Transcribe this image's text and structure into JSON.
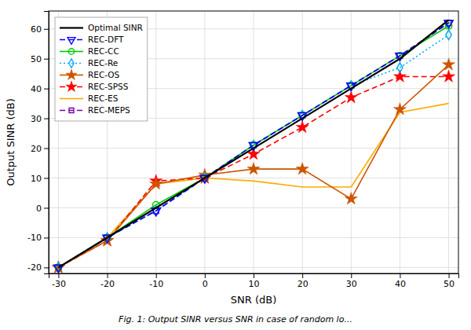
{
  "chart_data": {
    "type": "line",
    "x_label": "SNR (dB)",
    "y_label": "Output SINR (dB)",
    "caption": "Fig. 1: Output SINR versus SNR in case of random lo...",
    "x": [
      -30,
      -20,
      -10,
      0,
      10,
      20,
      30,
      40,
      50
    ],
    "series": [
      {
        "name": "Optimal SINR",
        "color": "#000000",
        "line_style": "solid",
        "marker": "none",
        "values": [
          -20,
          -10,
          0,
          10,
          20,
          30,
          40,
          50,
          63
        ]
      },
      {
        "name": "REC-DFT",
        "color": "#0000FF",
        "line_style": "dashed",
        "marker": "triangle-down",
        "values": [
          -20,
          -10,
          -1,
          10,
          21,
          31,
          41,
          51,
          62
        ]
      },
      {
        "name": "REC-CC",
        "color": "#00CC00",
        "line_style": "solid",
        "marker": "circle",
        "values": [
          -20,
          -10,
          1,
          10,
          21,
          31,
          41,
          51,
          61
        ]
      },
      {
        "name": "REC-Re",
        "color": "#00AAFF",
        "line_style": "dotted",
        "marker": "diamond",
        "values": [
          -20,
          -10,
          -1,
          10,
          21,
          31,
          41,
          47,
          58
        ]
      },
      {
        "name": "REC-OS",
        "color": "#CC5500",
        "line_style": "solid",
        "marker": "star",
        "values": [
          -20,
          -11,
          8,
          11,
          13,
          13,
          3,
          33,
          48
        ]
      },
      {
        "name": "REC-SPSS",
        "color": "#FF0000",
        "line_style": "dashed",
        "marker": "star",
        "values": [
          -20,
          -11,
          9,
          10,
          18,
          27,
          37,
          44,
          44
        ]
      },
      {
        "name": "REC-ES",
        "color": "#FFAA00",
        "line_style": "solid",
        "marker": "none",
        "values": [
          -20,
          -10,
          8,
          10,
          9,
          7,
          7,
          32,
          35
        ]
      },
      {
        "name": "REC-MEPS",
        "color": "#7700AA",
        "line_style": "dashed",
        "marker": "square",
        "values": [
          -20,
          -10,
          -1,
          10,
          21,
          31,
          41,
          51,
          62
        ]
      }
    ],
    "xlim": [
      -32,
      52
    ],
    "ylim": [
      -22,
      66
    ],
    "xticks": [
      -30,
      -20,
      -10,
      0,
      10,
      20,
      30,
      40,
      50
    ],
    "yticks": [
      -20,
      -10,
      0,
      10,
      20,
      30,
      40,
      50,
      60
    ],
    "grid": true,
    "legend": "upper-left"
  }
}
